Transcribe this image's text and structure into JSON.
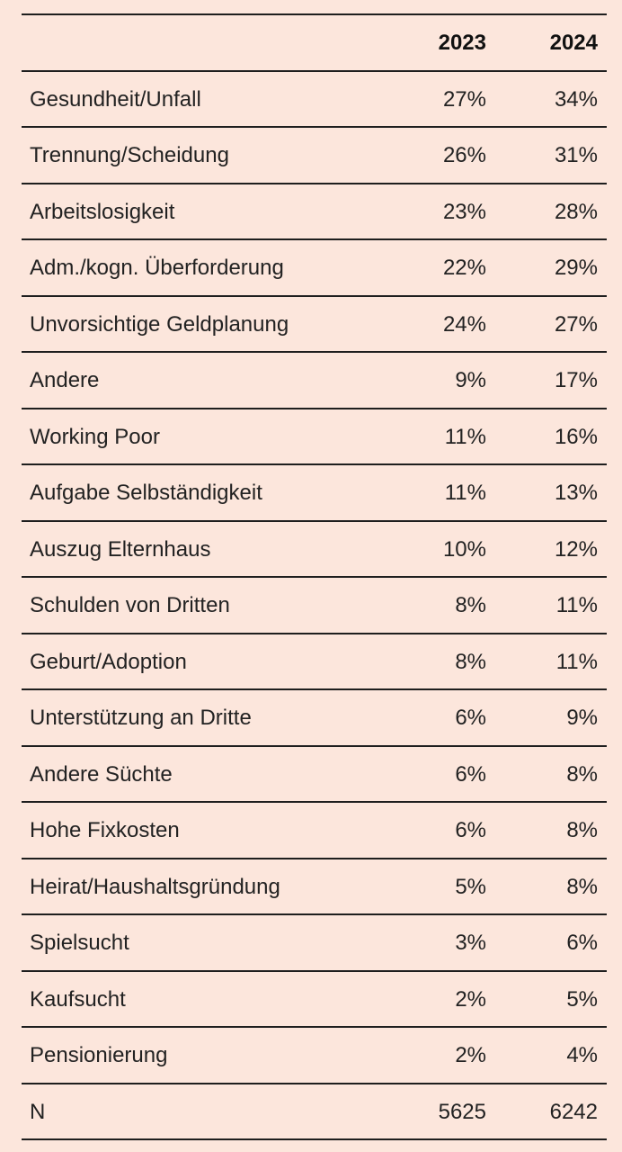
{
  "chart_data": {
    "type": "table",
    "columns": [
      "",
      "2023",
      "2024"
    ],
    "rows": [
      {
        "label": "Gesundheit/Unfall",
        "v2023": "27%",
        "v2024": "34%"
      },
      {
        "label": "Trennung/Scheidung",
        "v2023": "26%",
        "v2024": "31%"
      },
      {
        "label": "Arbeitslosigkeit",
        "v2023": "23%",
        "v2024": "28%"
      },
      {
        "label": "Adm./kogn. Überforderung",
        "v2023": "22%",
        "v2024": "29%"
      },
      {
        "label": "Unvorsichtige Geldplanung",
        "v2023": "24%",
        "v2024": "27%"
      },
      {
        "label": "Andere",
        "v2023": "9%",
        "v2024": "17%"
      },
      {
        "label": "Working Poor",
        "v2023": "11%",
        "v2024": "16%"
      },
      {
        "label": "Aufgabe Selbständigkeit",
        "v2023": "11%",
        "v2024": "13%"
      },
      {
        "label": "Auszug Elternhaus",
        "v2023": "10%",
        "v2024": "12%"
      },
      {
        "label": "Schulden von Dritten",
        "v2023": "8%",
        "v2024": "11%"
      },
      {
        "label": "Geburt/Adoption",
        "v2023": "8%",
        "v2024": "11%"
      },
      {
        "label": "Unterstützung an Dritte",
        "v2023": "6%",
        "v2024": "9%"
      },
      {
        "label": "Andere Süchte",
        "v2023": "6%",
        "v2024": "8%"
      },
      {
        "label": "Hohe Fixkosten",
        "v2023": "6%",
        "v2024": "8%"
      },
      {
        "label": "Heirat/Haushaltsgründung",
        "v2023": "5%",
        "v2024": "8%"
      },
      {
        "label": "Spielsucht",
        "v2023": "3%",
        "v2024": "6%"
      },
      {
        "label": "Kaufsucht",
        "v2023": "2%",
        "v2024": "5%"
      },
      {
        "label": "Pensionierung",
        "v2023": "2%",
        "v2024": "4%"
      },
      {
        "label": "N",
        "v2023": "5625",
        "v2024": "6242"
      }
    ]
  },
  "colors": {
    "background": "#fce6dc",
    "rule": "#1e1e1e",
    "text": "#222222"
  }
}
